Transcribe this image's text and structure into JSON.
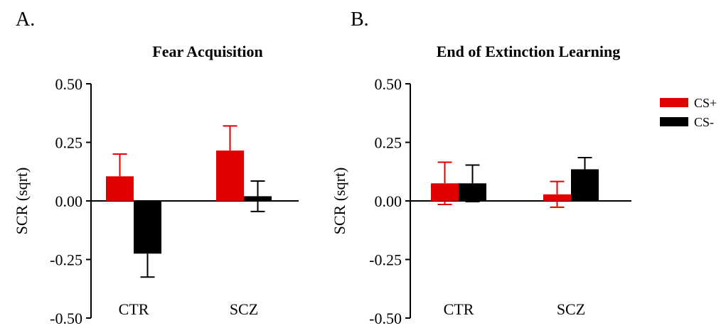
{
  "panel_labels": [
    "A.",
    "B."
  ],
  "legend": {
    "entries": [
      {
        "label": "CS+",
        "color": "#e00000"
      },
      {
        "label": "CS-",
        "color": "#000000"
      }
    ]
  },
  "chart_data": [
    {
      "type": "bar",
      "title": "Fear Acquisition",
      "xlabel": "",
      "ylabel": "SCR (sqrt)",
      "ylim": [
        -0.5,
        0.5
      ],
      "yticks": [
        "0.50",
        "0.25",
        "0.00",
        "-0.25",
        "-0.50"
      ],
      "ytick_values": [
        0.5,
        0.25,
        0.0,
        -0.25,
        -0.5
      ],
      "categories": [
        "CTR",
        "SCZ"
      ],
      "series": [
        {
          "name": "CS+",
          "color": "#e00000",
          "values": [
            0.105,
            0.215
          ],
          "errors": [
            0.095,
            0.105
          ]
        },
        {
          "name": "CS-",
          "color": "#000000",
          "values": [
            -0.225,
            0.02
          ],
          "errors": [
            0.1,
            0.065
          ]
        }
      ]
    },
    {
      "type": "bar",
      "title": "End of Extinction Learning",
      "xlabel": "",
      "ylabel": "SCR (sqrt)",
      "ylim": [
        -0.5,
        0.5
      ],
      "yticks": [
        "0.50",
        "0.25",
        "0.00",
        "-0.25",
        "-0.50"
      ],
      "ytick_values": [
        0.5,
        0.25,
        0.0,
        -0.25,
        -0.5
      ],
      "categories": [
        "CTR",
        "SCZ"
      ],
      "series": [
        {
          "name": "CS+",
          "color": "#e00000",
          "values": [
            0.075,
            0.028
          ],
          "errors": [
            0.09,
            0.055
          ]
        },
        {
          "name": "CS-",
          "color": "#000000",
          "values": [
            0.075,
            0.135
          ],
          "errors": [
            0.078,
            0.05
          ]
        }
      ]
    }
  ]
}
